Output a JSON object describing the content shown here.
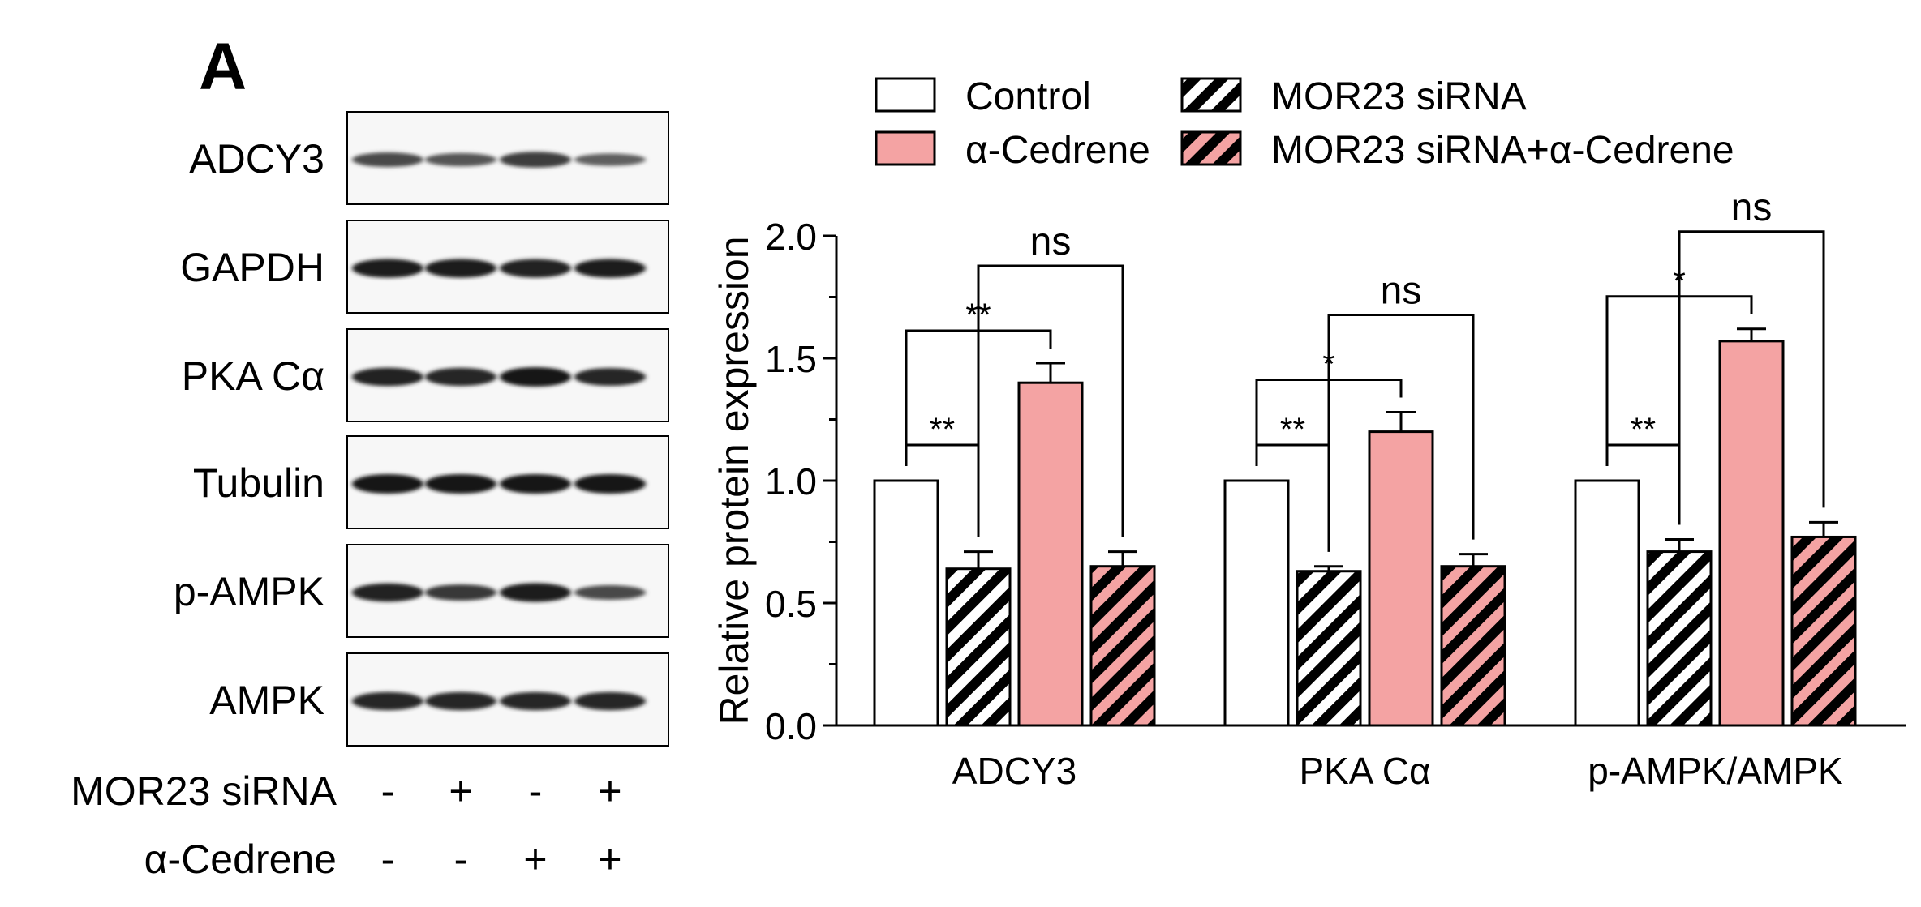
{
  "panel_label": "A",
  "blot": {
    "rows": [
      {
        "label": "ADCY3",
        "intensities": [
          0.62,
          0.52,
          0.72,
          0.45
        ]
      },
      {
        "label": "GAPDH",
        "intensities": [
          0.95,
          0.95,
          0.93,
          0.95
        ]
      },
      {
        "label": "PKA Cα",
        "intensities": [
          0.92,
          0.9,
          1.0,
          0.88
        ]
      },
      {
        "label": "Tubulin",
        "intensities": [
          1.0,
          1.0,
          1.0,
          1.0
        ]
      },
      {
        "label": "p-AMPK",
        "intensities": [
          0.92,
          0.75,
          0.95,
          0.62
        ]
      },
      {
        "label": "AMPK",
        "intensities": [
          0.9,
          0.9,
          0.9,
          0.9
        ]
      }
    ],
    "conditions": [
      {
        "label": "MOR23 siRNA",
        "values": [
          "-",
          "+",
          "-",
          "+"
        ]
      },
      {
        "label": "α-Cedrene",
        "values": [
          "-",
          "-",
          "+",
          "+"
        ]
      }
    ]
  },
  "colors": {
    "salmon": "#f4a3a3",
    "black": "#000000",
    "white": "#ffffff"
  },
  "chart_data": {
    "type": "bar",
    "ylabel": "Relative protein expression",
    "ylim": [
      0,
      2.0
    ],
    "yticks": [
      "0.0",
      "0.5",
      "1.0",
      "1.5",
      "2.0"
    ],
    "categories": [
      "ADCY3",
      "PKA Cα",
      "p-AMPK/AMPK"
    ],
    "legend": [
      {
        "name": "Control",
        "fill": "white"
      },
      {
        "name": "α-Cedrene",
        "fill": "salmon"
      },
      {
        "name": "MOR23 siRNA",
        "fill": "hatch-black"
      },
      {
        "name": "MOR23 siRNA+α-Cedrene",
        "fill": "hatch-salmon"
      }
    ],
    "bar_order": [
      "Control",
      "MOR23 siRNA",
      "α-Cedrene",
      "MOR23 siRNA+α-Cedrene"
    ],
    "series": [
      {
        "name": "Control",
        "values": [
          1.0,
          1.0,
          1.0
        ],
        "errors": [
          0,
          0,
          0
        ]
      },
      {
        "name": "MOR23 siRNA",
        "values": [
          0.64,
          0.63,
          0.71
        ],
        "errors": [
          0.07,
          0.02,
          0.05
        ]
      },
      {
        "name": "α-Cedrene",
        "values": [
          1.4,
          1.2,
          1.57
        ],
        "errors": [
          0.08,
          0.08,
          0.05
        ]
      },
      {
        "name": "MOR23 siRNA+α-Cedrene",
        "values": [
          0.65,
          0.65,
          0.77
        ],
        "errors": [
          0.06,
          0.05,
          0.06
        ]
      }
    ],
    "significance": [
      {
        "category": 0,
        "from": 0,
        "to": 1,
        "label": "**"
      },
      {
        "category": 0,
        "from": 0,
        "to": 2,
        "label": "**"
      },
      {
        "category": 0,
        "from": 1,
        "to": 3,
        "label": "ns"
      },
      {
        "category": 1,
        "from": 0,
        "to": 1,
        "label": "**"
      },
      {
        "category": 1,
        "from": 0,
        "to": 2,
        "label": "*"
      },
      {
        "category": 1,
        "from": 1,
        "to": 3,
        "label": "ns"
      },
      {
        "category": 2,
        "from": 0,
        "to": 1,
        "label": "**"
      },
      {
        "category": 2,
        "from": 0,
        "to": 2,
        "label": "*"
      },
      {
        "category": 2,
        "from": 1,
        "to": 3,
        "label": "ns"
      }
    ]
  }
}
